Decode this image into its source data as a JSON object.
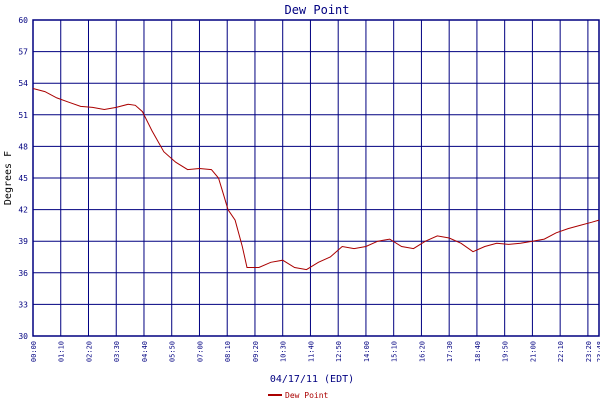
{
  "chart_data": {
    "type": "line",
    "title": "Dew Point",
    "xlabel": "04/17/11 (EDT)",
    "ylabel": "Degrees F",
    "ylim": [
      30,
      60
    ],
    "yticks": [
      30,
      33,
      36,
      39,
      42,
      45,
      48,
      51,
      54,
      57,
      60
    ],
    "xlim_hours": [
      0,
      23.8
    ],
    "xticks": [
      "00:00",
      "01:10",
      "02:20",
      "03:30",
      "04:40",
      "05:50",
      "07:00",
      "08:10",
      "09:20",
      "10:30",
      "11:40",
      "12:50",
      "14:00",
      "15:10",
      "16:20",
      "17:30",
      "18:40",
      "19:50",
      "21:00",
      "22:10",
      "23:20",
      "23:48"
    ],
    "grid": true,
    "legend_position": "bottom-left",
    "colors": {
      "series": "#aa0000",
      "grid": "#000080",
      "title": "#000080",
      "axis_text": "#000080"
    },
    "series": [
      {
        "name": "Dew Point",
        "x_hours": [
          0,
          0.5,
          1.0,
          1.5,
          2.0,
          2.5,
          3.0,
          3.5,
          4.0,
          4.3,
          4.6,
          5.0,
          5.5,
          6.0,
          6.5,
          7.0,
          7.5,
          7.8,
          8.0,
          8.2,
          8.5,
          8.8,
          9.0,
          9.5,
          10.0,
          10.5,
          11.0,
          11.5,
          12.0,
          12.5,
          13.0,
          13.5,
          14.0,
          14.5,
          15.0,
          15.5,
          16.0,
          16.5,
          17.0,
          17.5,
          18.0,
          18.5,
          19.0,
          19.5,
          20.0,
          20.5,
          21.0,
          21.5,
          22.0,
          22.5,
          23.0,
          23.5,
          23.8
        ],
        "values": [
          53.5,
          53.2,
          52.6,
          52.2,
          51.8,
          51.7,
          51.5,
          51.7,
          52.0,
          51.9,
          51.3,
          49.5,
          47.5,
          46.5,
          45.8,
          45.9,
          45.8,
          45.0,
          43.5,
          42.0,
          41.0,
          38.5,
          36.5,
          36.5,
          37.0,
          37.2,
          36.5,
          36.3,
          37.0,
          37.5,
          38.5,
          38.3,
          38.5,
          39.0,
          39.2,
          38.5,
          38.3,
          39.0,
          39.5,
          39.3,
          38.8,
          38.0,
          38.5,
          38.8,
          38.7,
          38.8,
          39.0,
          39.2,
          39.8,
          40.2,
          40.5,
          40.8,
          41.0
        ]
      }
    ]
  }
}
